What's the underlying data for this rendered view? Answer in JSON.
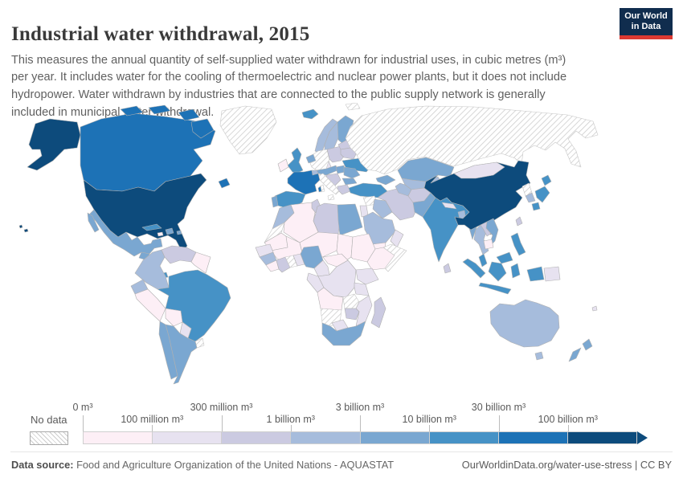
{
  "header": {
    "title": "Industrial water withdrawal, 2015",
    "subtitle": "This measures the annual quantity of self-supplied water withdrawn for industrial uses, in cubic metres (m³) per year. It includes water for the cooling of thermoelectric and nuclear power plants, but it does not include hydropower. Water withdrawn by industries that are connected to the public supply network is generally included in municipal water withdrawal.",
    "logo": {
      "line1": "Our World",
      "line2": "in Data",
      "bg_color": "#102d4e",
      "accent_color": "#dc3932"
    }
  },
  "legend": {
    "no_data_label": "No data",
    "boundary_labels": [
      "0 m³",
      "100 million m³",
      "300 million m³",
      "1 billion m³",
      "3 billion m³",
      "10 billion m³",
      "30 billion m³",
      "100 billion m³"
    ],
    "colors": [
      "#fdeff6",
      "#e7e2f0",
      "#cbcae1",
      "#a6bcdc",
      "#7aa7d1",
      "#4692c6",
      "#1d72b6",
      "#0d4b7c"
    ],
    "hatch_stripe_color": "#cdcdcd"
  },
  "footer": {
    "source_label": "Data source:",
    "source_text": " Food and Agriculture Organization of the United Nations - AQUASTAT",
    "link_text": "OurWorldinData.org/water-use-stress | CC BY"
  },
  "chart_data": {
    "type": "choropleth-map",
    "title": "Industrial water withdrawal, 2015",
    "unit": "m³ per year",
    "legend_position": "bottom",
    "bins": [
      "0–100 million m³",
      "100–300 million m³",
      "300 million–1 billion m³",
      "1–3 billion m³",
      "3–10 billion m³",
      "10–30 billion m³",
      "30–100 billion m³",
      "over 100 billion m³"
    ],
    "no_data_value": "nd",
    "countries": {
      "usa": 8,
      "alaska": 8,
      "hawaii": 8,
      "canada": 7,
      "greenland": "nd",
      "mexico": 5,
      "guatemala": 5,
      "honduras-nicaragua": 1,
      "costa-rica": 1,
      "panama": 6,
      "cuba": 6,
      "hispaniola": 5,
      "puerto-rico": 5,
      "jamaica": 1,
      "colombia": 4,
      "venezuela": 3,
      "guyanas": 1,
      "ecuador": 4,
      "peru": 1,
      "brazil": 6,
      "bolivia": 1,
      "paraguay": 2,
      "uruguay": "nd",
      "chile": 5,
      "argentina": 5,
      "iceland": 6,
      "norway": 4,
      "sweden": 4,
      "finland": 5,
      "denmark": 2,
      "uk": 6,
      "ireland": 1,
      "benelux": 5,
      "germany": "nd",
      "france": 7,
      "corsica": 7,
      "spain": 6,
      "portugal": 5,
      "switzerland": 4,
      "italy": "nd",
      "sicily": "nd",
      "sardinia": "nd",
      "czech-austria": 5,
      "poland": 3,
      "baltics": 3,
      "belarus": 3,
      "ukraine": 6,
      "hungary": 5,
      "romania": 5,
      "balkans": 3,
      "bulgaria": 5,
      "greece": 3,
      "russia": "nd",
      "svalbard": "nd",
      "turkey": 6,
      "caucasus": 5,
      "syria": "nd",
      "jordan-israel": 2,
      "iraq": 4,
      "iran": 3,
      "saudi-arabia": 4,
      "yemen": 1,
      "oman": 2,
      "kazakhstan": 5,
      "uzbekistan": 4,
      "turkmenistan": 4,
      "kyrgyz-tajik": 4,
      "afghanistan": 3,
      "pakistan": 5,
      "india": 6,
      "nepal": 2,
      "bangladesh": 4,
      "sri-lanka": 3,
      "myanmar": 5,
      "china": 8,
      "hainan": 8,
      "mongolia": 2,
      "north-korea": "nd",
      "south-korea": 4,
      "japan-hokkaido": 6,
      "japan-honshu": 6,
      "japan-kyushu": 6,
      "taiwan": 3,
      "thailand": 4,
      "laos": 3,
      "vietnam": 5,
      "cambodia": 1,
      "malaysia": 6,
      "malaysia-borneo": 6,
      "indonesia-sumatra": 6,
      "indonesia-java": 6,
      "indonesia-kalimantan": 6,
      "indonesia-sulawesi": 6,
      "indonesia-papua": 6,
      "papua-new-guinea": 2,
      "philippines": 6,
      "fiji": 2,
      "australia": 4,
      "tasmania": 4,
      "new-zealand-north": 5,
      "new-zealand-south": 5,
      "morocco": 4,
      "western-sahara": "nd",
      "algeria": 1,
      "tunisia": 3,
      "libya": 3,
      "egypt": 5,
      "mauritania": 1,
      "mali": 1,
      "niger": 1,
      "chad": 1,
      "sudan": 1,
      "ethiopia": 1,
      "somalia": "nd",
      "senegal": 2,
      "guinea": 4,
      "sierra-leone": 1,
      "ivory-coast": 3,
      "ghana": "nd",
      "togo-benin": 2,
      "nigeria": 5,
      "cameroon": 2,
      "car": 1,
      "drc": 2,
      "gabon-congo": 2,
      "kenya": 2,
      "tanzania": 2,
      "angola": 1,
      "zambia": "nd",
      "mozambique": 2,
      "zimbabwe": 3,
      "namibia": "nd",
      "botswana": 2,
      "south-africa": 5,
      "madagascar": 3
    }
  }
}
